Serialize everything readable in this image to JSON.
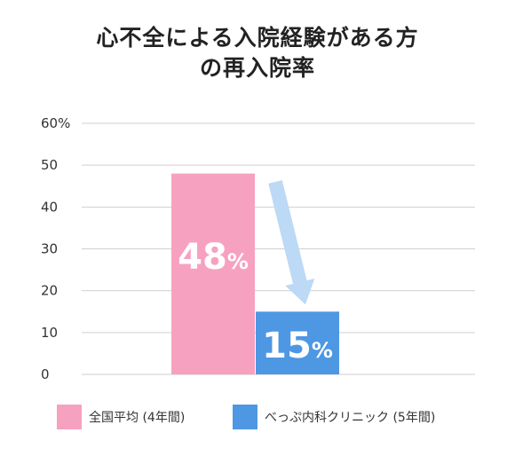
{
  "chart_data": {
    "type": "bar",
    "title_lines": [
      "心不全による入院経験がある方",
      "の再入院率"
    ],
    "categories": [
      "全国平均 (4年間)",
      "べっぷ内科クリニック (5年間)"
    ],
    "values": [
      48,
      15
    ],
    "data_labels": [
      {
        "number": "48",
        "unit": "%"
      },
      {
        "number": "15",
        "unit": "%"
      }
    ],
    "colors": [
      "#f7a1c1",
      "#4e97e3"
    ],
    "arrow_color": "#bcd9f6",
    "ylim": [
      0,
      60
    ],
    "yticks": [
      {
        "value": 0,
        "label": "0"
      },
      {
        "value": 10,
        "label": "10"
      },
      {
        "value": 20,
        "label": "20"
      },
      {
        "value": 30,
        "label": "30"
      },
      {
        "value": 40,
        "label": "40"
      },
      {
        "value": 50,
        "label": "50"
      },
      {
        "value": 60,
        "label": "60%"
      }
    ],
    "grid": true,
    "legend_position": "bottom"
  }
}
